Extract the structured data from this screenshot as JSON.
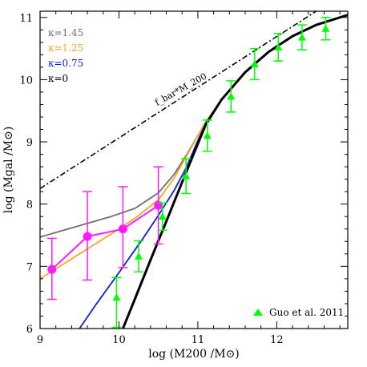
{
  "chart_data": {
    "type": "line",
    "xlabel": "log (M200 /M⊙)",
    "ylabel": "log (Mgal /M⊙)",
    "xlim": [
      9.0,
      12.9
    ],
    "ylim": [
      6.0,
      11.1
    ],
    "x_ticks": [
      9,
      10,
      11,
      12
    ],
    "y_ticks": [
      6,
      7,
      8,
      9,
      10,
      11
    ],
    "legend_position": "top-left",
    "kappa_legend": [
      {
        "label": "κ=1.45",
        "color": "#6e6e6e"
      },
      {
        "label": "κ=1.25",
        "color": "#f5a623"
      },
      {
        "label": "κ=0.75",
        "color": "#0b1fd6"
      },
      {
        "label": "κ=0",
        "color": "#000000"
      }
    ],
    "series": [
      {
        "name": "κ=1.45",
        "color": "#6e6e6e",
        "x": [
          9.0,
          9.3,
          9.6,
          9.9,
          10.2,
          10.5,
          10.7,
          10.85,
          11.0,
          11.1,
          11.3,
          11.6,
          11.9,
          12.2,
          12.5,
          12.9
        ],
        "y": [
          7.47,
          7.58,
          7.69,
          7.8,
          7.93,
          8.18,
          8.48,
          8.78,
          9.1,
          9.32,
          9.68,
          10.12,
          10.45,
          10.7,
          10.88,
          11.04
        ]
      },
      {
        "name": "κ=1.25",
        "color": "#f5a623",
        "x": [
          9.0,
          9.3,
          9.6,
          9.9,
          10.2,
          10.5,
          10.7,
          10.85,
          11.0,
          11.1,
          11.3,
          11.6,
          11.9,
          12.2,
          12.5,
          12.9
        ],
        "y": [
          6.8,
          7.04,
          7.28,
          7.52,
          7.77,
          8.07,
          8.42,
          8.76,
          9.1,
          9.32,
          9.68,
          10.12,
          10.45,
          10.7,
          10.88,
          11.04
        ]
      },
      {
        "name": "κ=0.75",
        "color": "#0b1fd6",
        "x": [
          9.5,
          9.7,
          10.0,
          10.3,
          10.5,
          10.7,
          10.85,
          11.0,
          11.1,
          11.3,
          11.6,
          11.9,
          12.2,
          12.5,
          12.9
        ],
        "y": [
          6.0,
          6.37,
          6.9,
          7.44,
          7.82,
          8.22,
          8.58,
          9.02,
          9.3,
          9.68,
          10.12,
          10.45,
          10.7,
          10.88,
          11.04
        ]
      },
      {
        "name": "κ=0",
        "color": "#000000",
        "x": [
          10.05,
          10.2,
          10.4,
          10.6,
          10.8,
          11.0,
          11.1,
          11.3,
          11.6,
          11.9,
          12.2,
          12.5,
          12.9
        ],
        "y": [
          6.0,
          6.47,
          7.1,
          7.72,
          8.35,
          8.97,
          9.28,
          9.68,
          10.12,
          10.45,
          10.7,
          10.88,
          11.04
        ]
      }
    ],
    "baryon_line": {
      "label": "f_bar*M_200",
      "x": [
        9.0,
        12.5
      ],
      "y": [
        8.25,
        11.1
      ]
    },
    "magenta_points": [
      {
        "x": 9.15,
        "y": 6.95,
        "err_lo": 0.48,
        "err_hi": 0.5
      },
      {
        "x": 9.6,
        "y": 7.48,
        "err_lo": 0.7,
        "err_hi": 0.72
      },
      {
        "x": 10.05,
        "y": 7.6,
        "err_lo": 0.62,
        "err_hi": 0.68
      },
      {
        "x": 10.5,
        "y": 7.98,
        "err_lo": 0.62,
        "err_hi": 0.62
      }
    ],
    "guo_points": {
      "label": "Guo et al. 2011",
      "color": "#00ff00",
      "points": [
        {
          "x": 9.97,
          "y": 6.5,
          "err_lo": 0.48,
          "err_hi": 0.32
        },
        {
          "x": 10.25,
          "y": 7.16,
          "err_lo": 0.25,
          "err_hi": 0.25
        },
        {
          "x": 10.55,
          "y": 7.8,
          "err_lo": 0.22,
          "err_hi": 0.22
        },
        {
          "x": 10.85,
          "y": 8.45,
          "err_lo": 0.28,
          "err_hi": 0.28
        },
        {
          "x": 11.12,
          "y": 9.1,
          "err_lo": 0.25,
          "err_hi": 0.25
        },
        {
          "x": 11.42,
          "y": 9.73,
          "err_lo": 0.25,
          "err_hi": 0.25
        },
        {
          "x": 11.72,
          "y": 10.25,
          "err_lo": 0.25,
          "err_hi": 0.25
        },
        {
          "x": 12.02,
          "y": 10.52,
          "err_lo": 0.22,
          "err_hi": 0.22
        },
        {
          "x": 12.32,
          "y": 10.68,
          "err_lo": 0.2,
          "err_hi": 0.2
        },
        {
          "x": 12.62,
          "y": 10.82,
          "err_lo": 0.18,
          "err_hi": 0.18
        }
      ]
    }
  }
}
